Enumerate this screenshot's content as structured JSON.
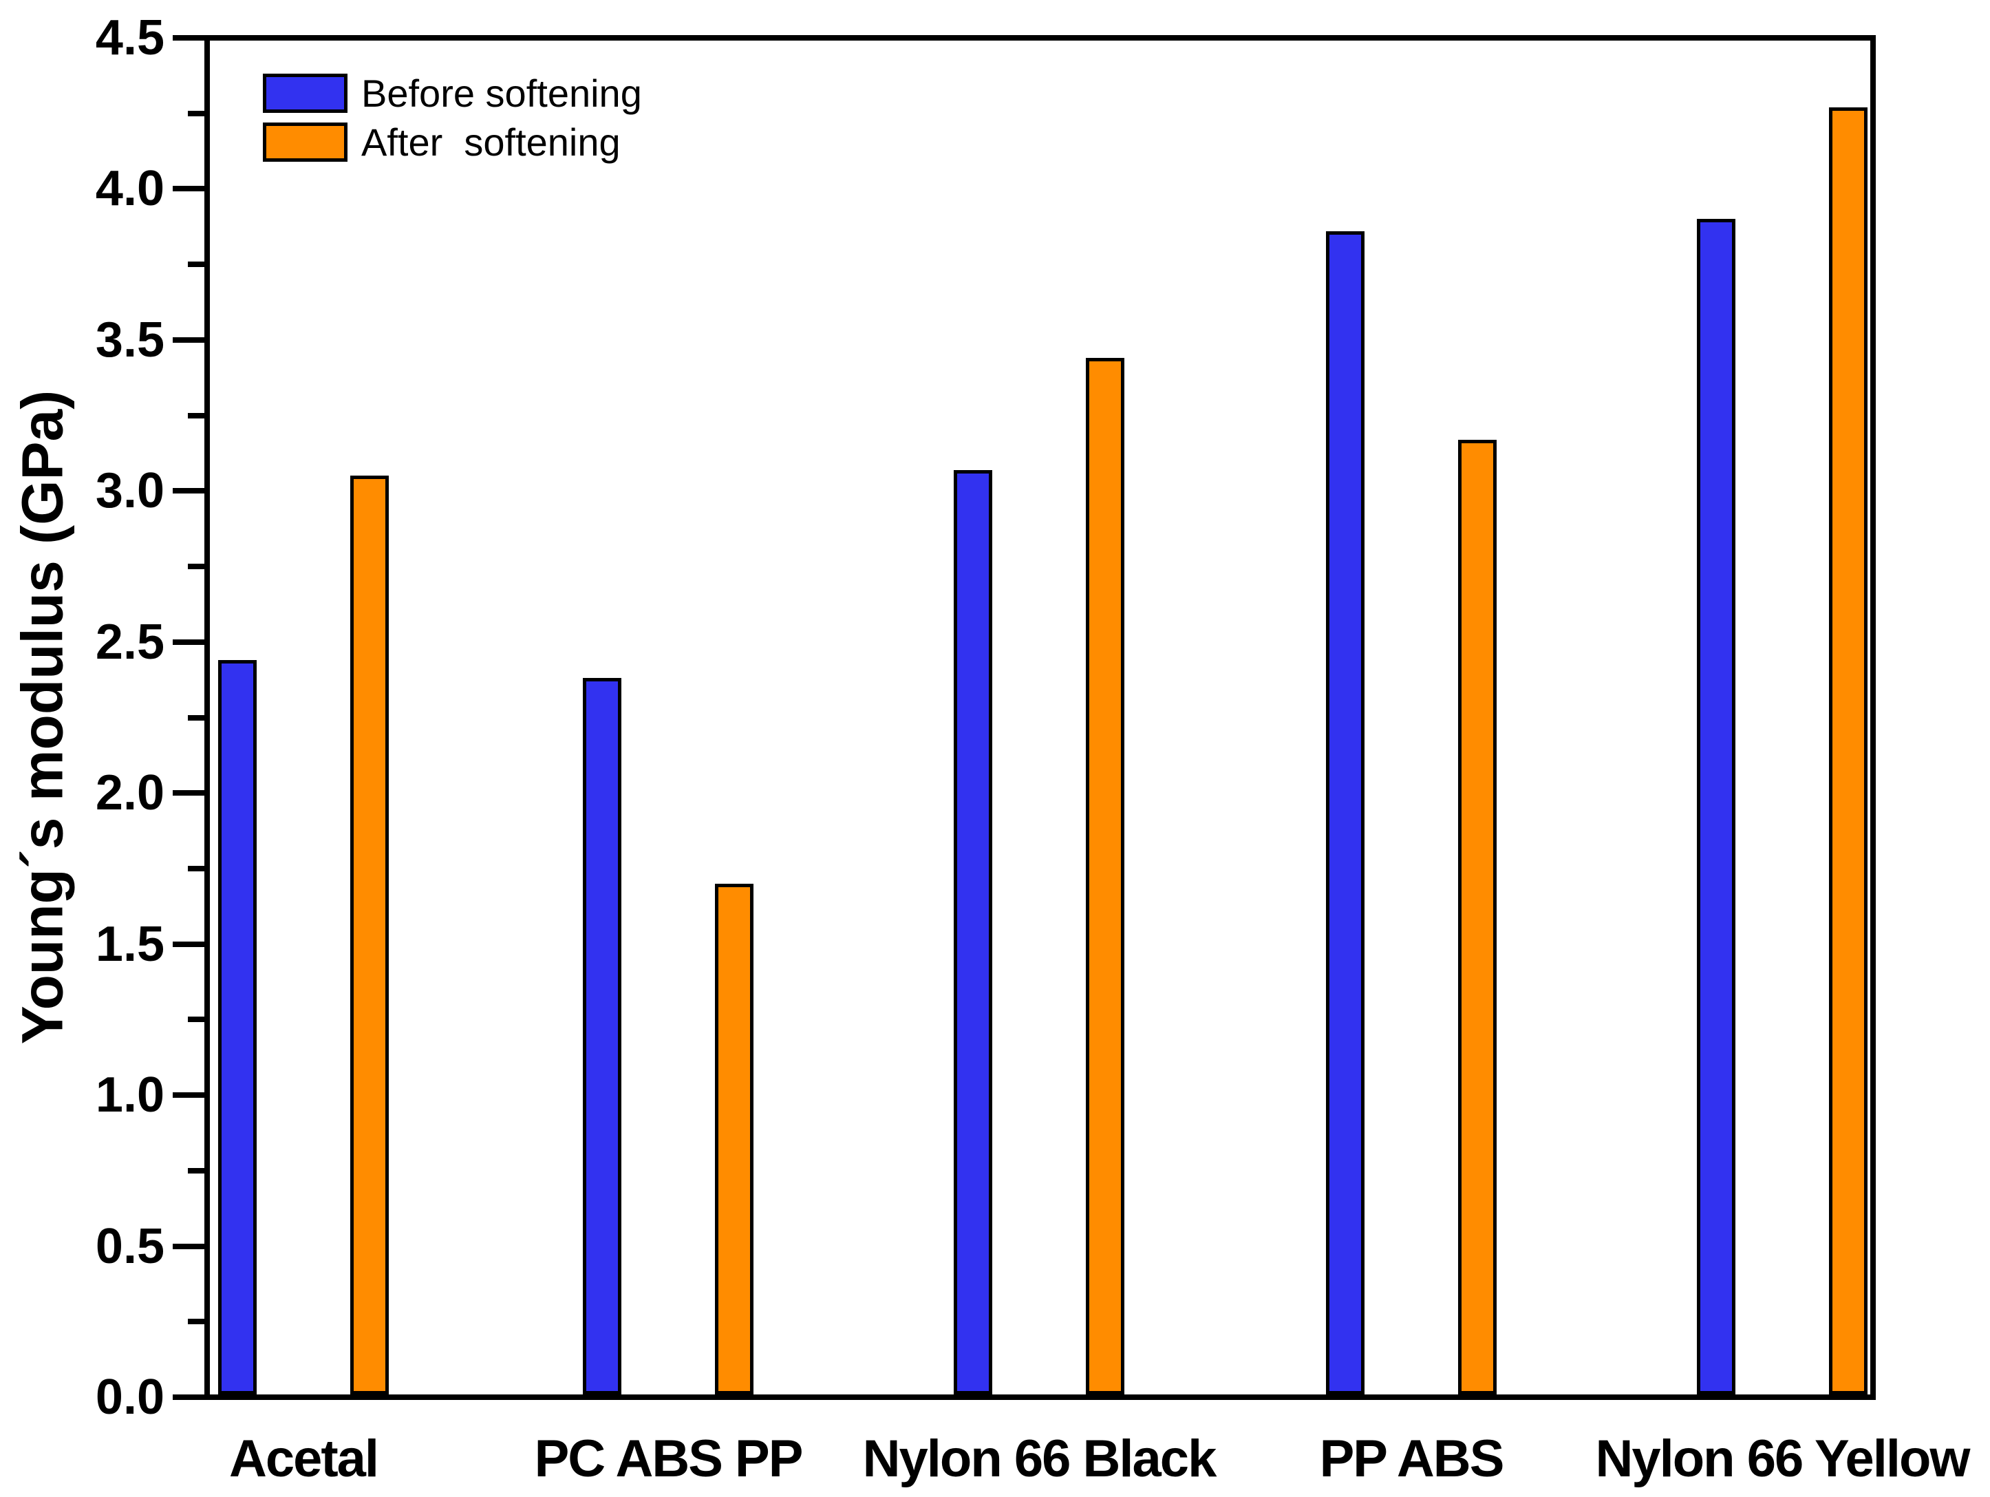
{
  "chart_data": {
    "type": "bar",
    "title": "",
    "xlabel": "",
    "ylabel": "Young´s modulus (GPa)",
    "ylim": [
      0,
      4.5
    ],
    "y_major_step": 0.5,
    "y_minor_step": 0.25,
    "y_tick_labels": [
      "0.0",
      "0.5",
      "1.0",
      "1.5",
      "2.0",
      "2.5",
      "3.0",
      "3.5",
      "4.0",
      "4.5"
    ],
    "categories": [
      "Acetal",
      "PC ABS PP",
      "Nylon 66 Black",
      "PP ABS",
      "Nylon 66 Yellow"
    ],
    "series": [
      {
        "name": "Before softening",
        "color": "#3232f0",
        "values": [
          2.44,
          2.38,
          3.07,
          3.86,
          3.9
        ]
      },
      {
        "name": "After  softening",
        "color": "#ff8c00",
        "values": [
          3.05,
          1.7,
          3.44,
          3.17,
          4.27
        ]
      }
    ],
    "grid": false,
    "legend_position": "top-left"
  },
  "legend": {
    "items": [
      {
        "label": "Before softening",
        "swatch_color": "#3232f0"
      },
      {
        "label": "After  softening",
        "swatch_color": "#ff8c00"
      }
    ]
  },
  "colors": {
    "before_softening": "#3232f0",
    "after_softening": "#ff8c00",
    "axis": "#000000",
    "background": "#ffffff"
  }
}
